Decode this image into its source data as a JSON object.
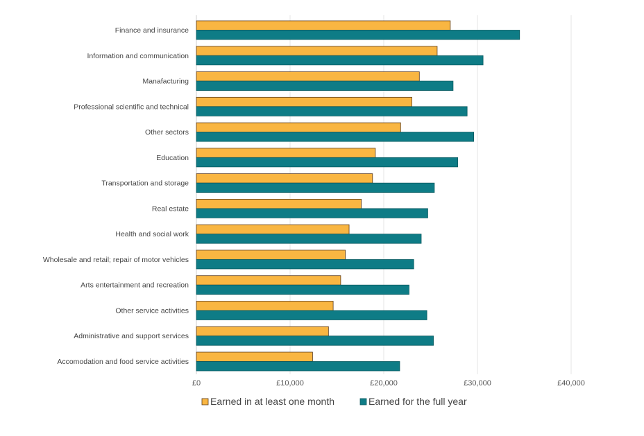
{
  "chart_data": {
    "type": "bar",
    "orientation": "horizontal",
    "categories": [
      "Finance and insurance",
      "Information and communication",
      "Manafacturing",
      "Professional scientific and technical",
      "Other sectors",
      "Education",
      "Transportation and storage",
      "Real estate",
      "Health and social work",
      "Wholesale and retail; repair of motor vehicles",
      "Arts entertainment and recreation",
      "Other service activities",
      "Administrative and support services",
      "Accomodation and food service activities"
    ],
    "series": [
      {
        "name": "Earned in at least one month",
        "color": "#f9b642",
        "values": [
          27100,
          25700,
          23800,
          23000,
          21800,
          19100,
          18800,
          17600,
          16300,
          15900,
          15400,
          14600,
          14100,
          12400
        ]
      },
      {
        "name": "Earned for the full year",
        "color": "#0e7c86",
        "values": [
          34500,
          30600,
          27400,
          28900,
          29600,
          27900,
          25400,
          24700,
          24000,
          23200,
          22700,
          24600,
          25300,
          21700
        ]
      }
    ],
    "xlim": [
      0,
      40000
    ],
    "xticks": [
      0,
      10000,
      20000,
      30000,
      40000
    ],
    "xtick_labels": [
      "£0",
      "£10,000",
      "£20,000",
      "£30,000",
      "£40,000"
    ],
    "grid": true,
    "legend_position": "bottom"
  }
}
